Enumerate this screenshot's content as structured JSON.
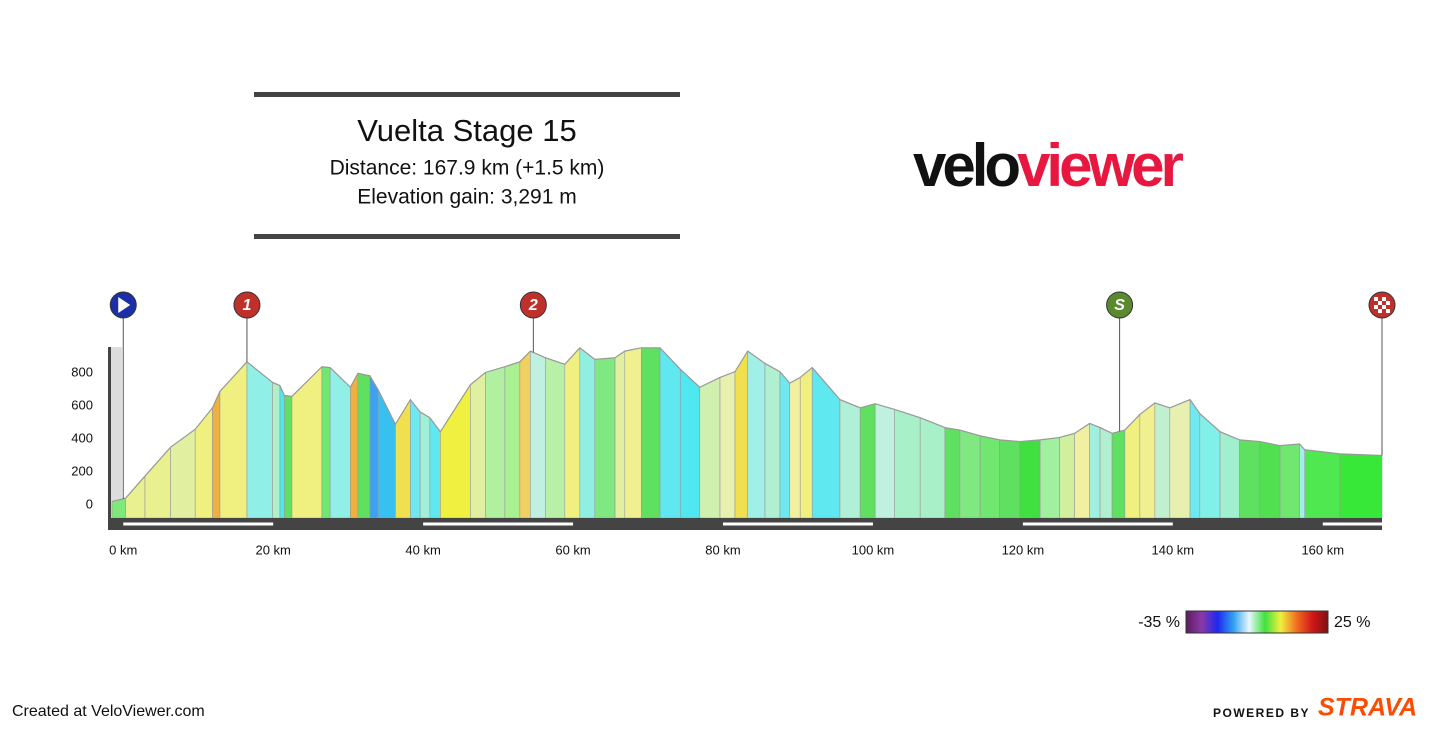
{
  "chart_data": {
    "type": "elevation-profile",
    "title": "Vuelta Stage 15",
    "subtitle": [
      "Distance: 167.9 km (+1.5 km)",
      "Elevation gain: 3,291 m"
    ],
    "x": [
      -1.5,
      0.3,
      2.9,
      6.3,
      9.6,
      11.9,
      12.9,
      16.5,
      19.9,
      20.9,
      21.5,
      22.5,
      26.5,
      27.6,
      30.3,
      31.3,
      32.9,
      34.0,
      36.3,
      38.3,
      39.6,
      40.9,
      42.3,
      46.3,
      48.3,
      50.9,
      52.9,
      54.3,
      56.3,
      58.9,
      60.9,
      62.9,
      65.6,
      66.9,
      69.1,
      71.6,
      74.3,
      76.9,
      79.6,
      81.6,
      83.3,
      85.6,
      87.6,
      88.9,
      90.3,
      91.9,
      95.6,
      98.3,
      100.3,
      102.9,
      106.3,
      109.6,
      111.6,
      114.3,
      116.9,
      119.6,
      122.3,
      124.9,
      126.9,
      128.9,
      130.3,
      131.9,
      133.6,
      135.6,
      137.6,
      139.6,
      142.3,
      143.6,
      146.3,
      148.9,
      151.6,
      154.3,
      156.9,
      157.6,
      162.3,
      167.9
    ],
    "values": [
      20,
      40,
      175,
      350,
      460,
      590,
      690,
      870,
      745,
      725,
      665,
      660,
      840,
      835,
      715,
      800,
      785,
      700,
      490,
      640,
      565,
      530,
      445,
      730,
      805,
      840,
      870,
      935,
      895,
      855,
      955,
      885,
      895,
      935,
      955,
      955,
      825,
      715,
      775,
      810,
      935,
      860,
      810,
      740,
      775,
      835,
      640,
      590,
      615,
      580,
      530,
      470,
      455,
      420,
      395,
      385,
      395,
      410,
      435,
      495,
      470,
      435,
      455,
      550,
      620,
      590,
      640,
      555,
      445,
      395,
      385,
      360,
      370,
      335,
      310,
      300
    ],
    "segment_colors": [
      "#7fe87a",
      "#e8f090",
      "#e8f090",
      "#e0f0a0",
      "#f0f080",
      "#f0b040",
      "#f0f080",
      "#90f0e8",
      "#b0f0c8",
      "#50e8f0",
      "#60e060",
      "#f0f080",
      "#70e870",
      "#90f0e8",
      "#f0b040",
      "#60e060",
      "#40a0f0",
      "#38c0f0",
      "#f0e050",
      "#70e8f0",
      "#a0f0d8",
      "#60e8f0",
      "#f0f040",
      "#e0f0a0",
      "#b0f0a0",
      "#a8f090",
      "#f0d060",
      "#c0f0e0",
      "#b8f0a8",
      "#f0f080",
      "#90f0e0",
      "#80e880",
      "#e0f0a0",
      "#f0f090",
      "#60e060",
      "#60e8f0",
      "#50e8f0",
      "#d0f0b0",
      "#e8f0b0",
      "#f0e050",
      "#a0f0e8",
      "#b0f0d0",
      "#70e8f0",
      "#f0f0a0",
      "#f0f080",
      "#60e8f0",
      "#b0f0d8",
      "#60e060",
      "#c0f0e0",
      "#a8f0c8",
      "#a8f0c8",
      "#60e060",
      "#80e880",
      "#70e870",
      "#60e060",
      "#40e040",
      "#a0f0a0",
      "#d0f0a0",
      "#f0f0a0",
      "#a0f0e0",
      "#b0f0d0",
      "#60e060",
      "#f0f080",
      "#f0f090",
      "#c0f0d0",
      "#e8f0b0",
      "#70e8f0",
      "#80f0e8",
      "#a0f0d0",
      "#60e060",
      "#50e050",
      "#70e870",
      "#a0f0e8",
      "#50e850",
      "#38e838"
    ],
    "xlim": [
      -1.5,
      167.9
    ],
    "ylim": [
      -80,
      960
    ],
    "xticks": [
      {
        "value": 0,
        "label": "0 km"
      },
      {
        "value": 20,
        "label": "20 km"
      },
      {
        "value": 40,
        "label": "40 km"
      },
      {
        "value": 60,
        "label": "60 km"
      },
      {
        "value": 80,
        "label": "80 km"
      },
      {
        "value": 100,
        "label": "100 km"
      },
      {
        "value": 120,
        "label": "120 km"
      },
      {
        "value": 140,
        "label": "140 km"
      },
      {
        "value": 160,
        "label": "160 km"
      }
    ],
    "yticks": [
      0,
      200,
      400,
      600,
      800
    ],
    "markers": [
      {
        "x": 0,
        "kind": "start",
        "color": "#1c2fa6"
      },
      {
        "x": 16.5,
        "label": "1",
        "color": "#c0302a"
      },
      {
        "x": 54.7,
        "label": "2",
        "color": "#c0302a"
      },
      {
        "x": 132.9,
        "label": "S",
        "color": "#5a8a2e"
      },
      {
        "x": 167.9,
        "kind": "finish",
        "color": "#c0302a"
      }
    ],
    "legend": {
      "min_label": "-35 %",
      "max_label": "25 %",
      "colors": [
        "#5e1a5e",
        "#8a3aa8",
        "#2028f0",
        "#30a0f0",
        "#e8f8ff",
        "#40e040",
        "#f0f040",
        "#f07020",
        "#d01818",
        "#801010"
      ]
    }
  },
  "logo": {
    "left": "velo",
    "right": "viewer"
  },
  "footer": {
    "credit": "Created at VeloViewer.com",
    "powered": "POWERED BY",
    "brand": "STRAVA"
  }
}
